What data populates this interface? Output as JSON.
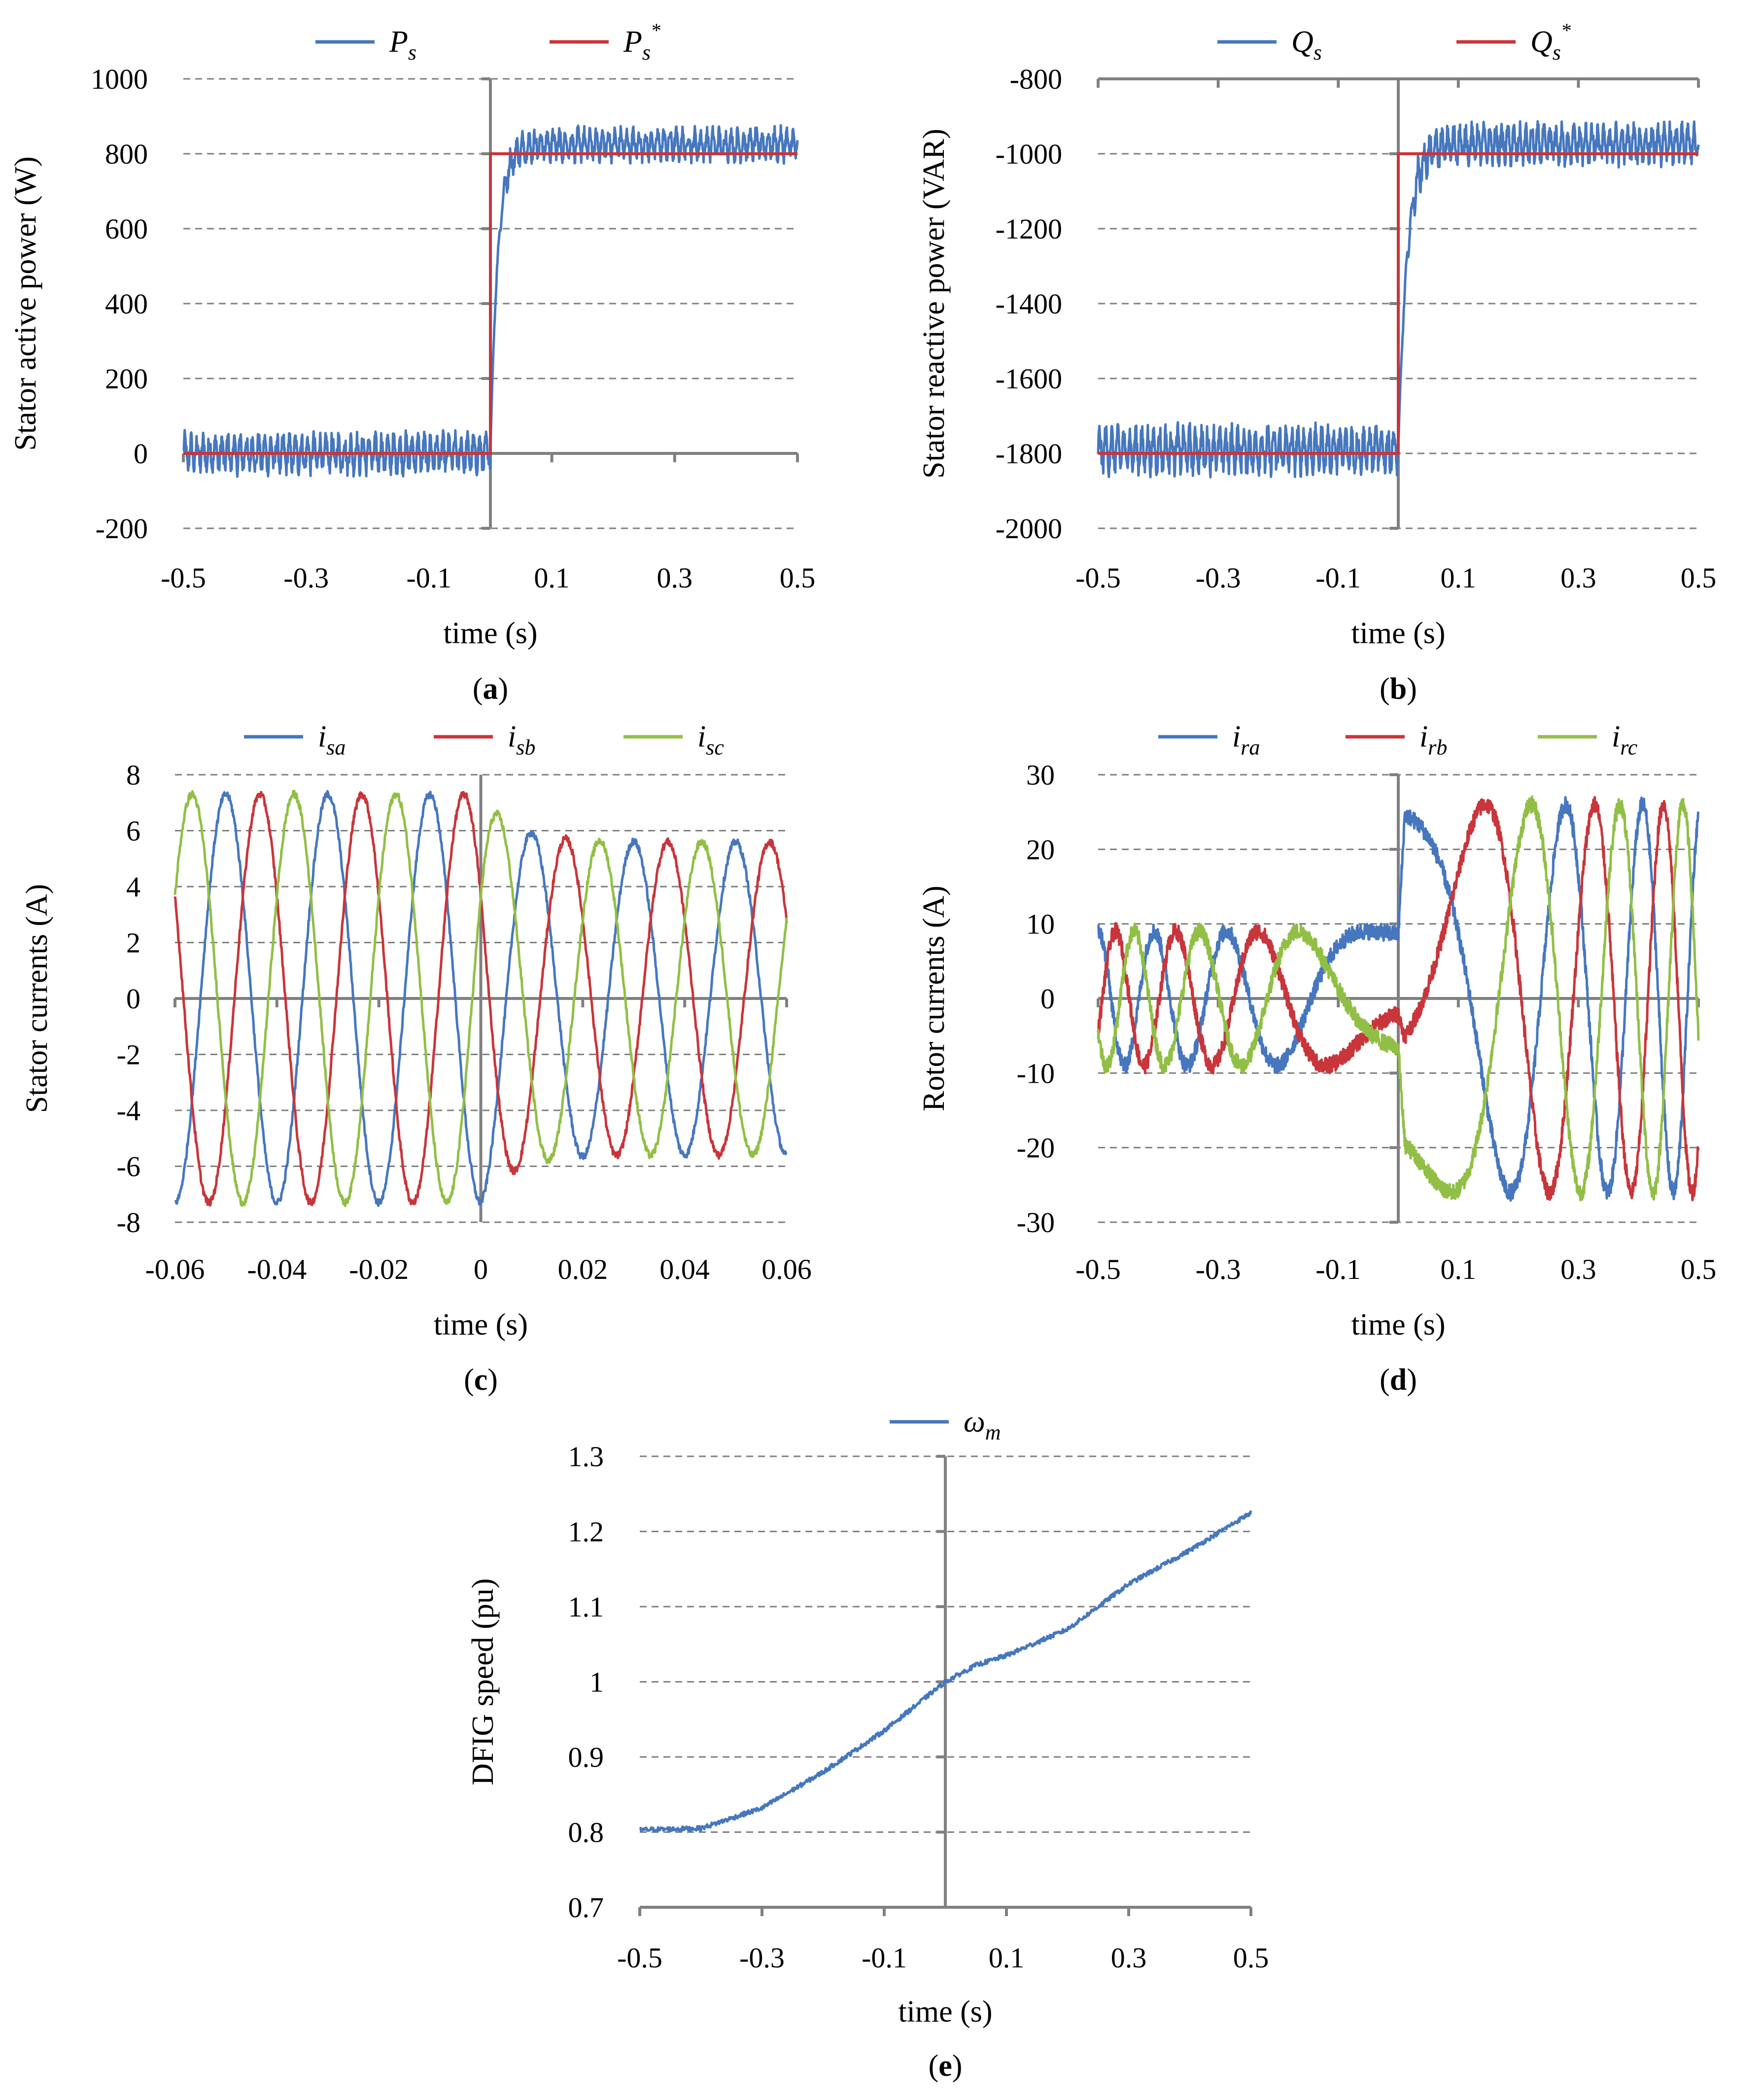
{
  "colors": {
    "blue": "#4677be",
    "red": "#c8353a",
    "green": "#91bf45"
  },
  "chart_data": [
    {
      "id": "a",
      "type": "line",
      "panel_label": "a",
      "xlabel": "time (s)",
      "ylabel": "Stator active power (W)",
      "xlim": [
        -0.5,
        0.5
      ],
      "ylim": [
        -200,
        1000
      ],
      "xticks": [
        "-0.5",
        "-0.3",
        "-0.1",
        "0.1",
        "0.3",
        "0.5"
      ],
      "yticks": [
        "1000",
        "800",
        "600",
        "400",
        "200",
        "0",
        "-200"
      ],
      "legend": [
        {
          "base": "P",
          "sub": "s",
          "sup": "",
          "color": "blue"
        },
        {
          "base": "P",
          "sub": "s",
          "sup": "*",
          "color": "red"
        }
      ],
      "series": [
        {
          "name": "Ps",
          "color": "blue",
          "kind": "step_response",
          "before": 0,
          "after": 825,
          "ripple_before": 55,
          "ripple_after": 45,
          "tau": 0.012
        },
        {
          "name": "Ps*",
          "color": "red",
          "kind": "step",
          "before": 0,
          "after": 800
        }
      ]
    },
    {
      "id": "b",
      "type": "line",
      "panel_label": "b",
      "xlabel": "time (s)",
      "ylabel": "Stator reactive power (VAR)",
      "xlim": [
        -0.5,
        0.5
      ],
      "ylim": [
        -2000,
        -800
      ],
      "xticks": [
        "-0.5",
        "-0.3",
        "-0.1",
        "0.1",
        "0.3",
        "0.5"
      ],
      "yticks": [
        "-800",
        "-1000",
        "-1200",
        "-1400",
        "-1600",
        "-1800",
        "-2000"
      ],
      "legend": [
        {
          "base": "Q",
          "sub": "s",
          "sup": "",
          "color": "blue"
        },
        {
          "base": "Q",
          "sub": "s",
          "sup": "*",
          "color": "red"
        }
      ],
      "series": [
        {
          "name": "Qs",
          "color": "blue",
          "kind": "step_response",
          "before": -1790,
          "after": -975,
          "ripple_before": 65,
          "ripple_after": 55,
          "tau": 0.015
        },
        {
          "name": "Qs*",
          "color": "red",
          "kind": "step",
          "before": -1800,
          "after": -1000
        }
      ]
    },
    {
      "id": "c",
      "type": "line",
      "panel_label": "c",
      "xlabel": "time (s)",
      "ylabel": "Stator currents (A)",
      "xlim": [
        -0.06,
        0.06
      ],
      "ylim": [
        -8,
        8
      ],
      "xticks": [
        "-0.06",
        "-0.04",
        "-0.02",
        "0",
        "0.02",
        "0.04",
        "0.06"
      ],
      "yticks": [
        "8",
        "6",
        "4",
        "2",
        "0",
        "-2",
        "-4",
        "-6",
        "-8"
      ],
      "legend": [
        {
          "base": "i",
          "sub": "sa",
          "sup": "",
          "color": "blue"
        },
        {
          "base": "i",
          "sub": "sb",
          "sup": "",
          "color": "red"
        },
        {
          "base": "i",
          "sub": "sc",
          "sup": "",
          "color": "green"
        }
      ],
      "series": [
        {
          "name": "isa",
          "color": "blue",
          "kind": "sine3",
          "amp_before": 7.3,
          "amp_after": 5.6,
          "freq_hz": 50,
          "phase_deg": -90
        },
        {
          "name": "isb",
          "color": "red",
          "kind": "sine3",
          "amp_before": 7.3,
          "amp_after": 5.6,
          "freq_hz": 50,
          "phase_deg": -210
        },
        {
          "name": "isc",
          "color": "green",
          "kind": "sine3",
          "amp_before": 7.3,
          "amp_after": 5.6,
          "freq_hz": 50,
          "phase_deg": 30
        }
      ]
    },
    {
      "id": "d",
      "type": "line",
      "panel_label": "d",
      "xlabel": "time (s)",
      "ylabel": "Rotor currents (A)",
      "xlim": [
        -0.5,
        0.5
      ],
      "ylim": [
        -30,
        30
      ],
      "xticks": [
        "-0.5",
        "-0.3",
        "-0.1",
        "0.1",
        "0.3",
        "0.5"
      ],
      "yticks": [
        "30",
        "20",
        "10",
        "0",
        "-10",
        "-20",
        "-30"
      ],
      "legend": [
        {
          "base": "i",
          "sub": "ra",
          "sup": "",
          "color": "blue"
        },
        {
          "base": "i",
          "sub": "rb",
          "sup": "",
          "color": "red"
        },
        {
          "base": "i",
          "sub": "rc",
          "sup": "",
          "color": "green"
        }
      ],
      "series": [
        {
          "name": "ira",
          "color": "blue",
          "kind": "rotor",
          "amp_before": 9,
          "amp_after": 26,
          "phase_deg": 90
        },
        {
          "name": "irb",
          "color": "red",
          "kind": "rotor",
          "amp_before": 9,
          "amp_after": 26,
          "phase_deg": -30
        },
        {
          "name": "irc",
          "color": "green",
          "kind": "rotor",
          "amp_before": 9,
          "amp_after": 26,
          "phase_deg": 210
        }
      ]
    },
    {
      "id": "e",
      "type": "line",
      "panel_label": "e",
      "xlabel": "time (s)",
      "ylabel": "DFIG speed (pu)",
      "xlim": [
        -0.5,
        0.5
      ],
      "ylim": [
        0.7,
        1.3
      ],
      "xticks": [
        "-0.5",
        "-0.3",
        "-0.1",
        "0.1",
        "0.3",
        "0.5"
      ],
      "yticks": [
        "1.3",
        "1.2",
        "1.1",
        "1",
        "0.9",
        "0.8",
        "0.7"
      ],
      "legend": [
        {
          "base": "ω",
          "sub": "m",
          "sup": "",
          "color": "blue"
        }
      ],
      "series": [
        {
          "name": "ωm",
          "color": "blue",
          "kind": "speed",
          "points": [
            [
              -0.5,
              0.803
            ],
            [
              -0.4,
              0.805
            ],
            [
              -0.3,
              0.832
            ],
            [
              -0.2,
              0.88
            ],
            [
              -0.1,
              0.935
            ],
            [
              0.0,
              1.0
            ],
            [
              0.05,
              1.022
            ],
            [
              0.1,
              1.035
            ],
            [
              0.2,
              1.07
            ],
            [
              0.3,
              1.13
            ],
            [
              0.4,
              1.175
            ],
            [
              0.5,
              1.225
            ]
          ]
        }
      ]
    }
  ]
}
